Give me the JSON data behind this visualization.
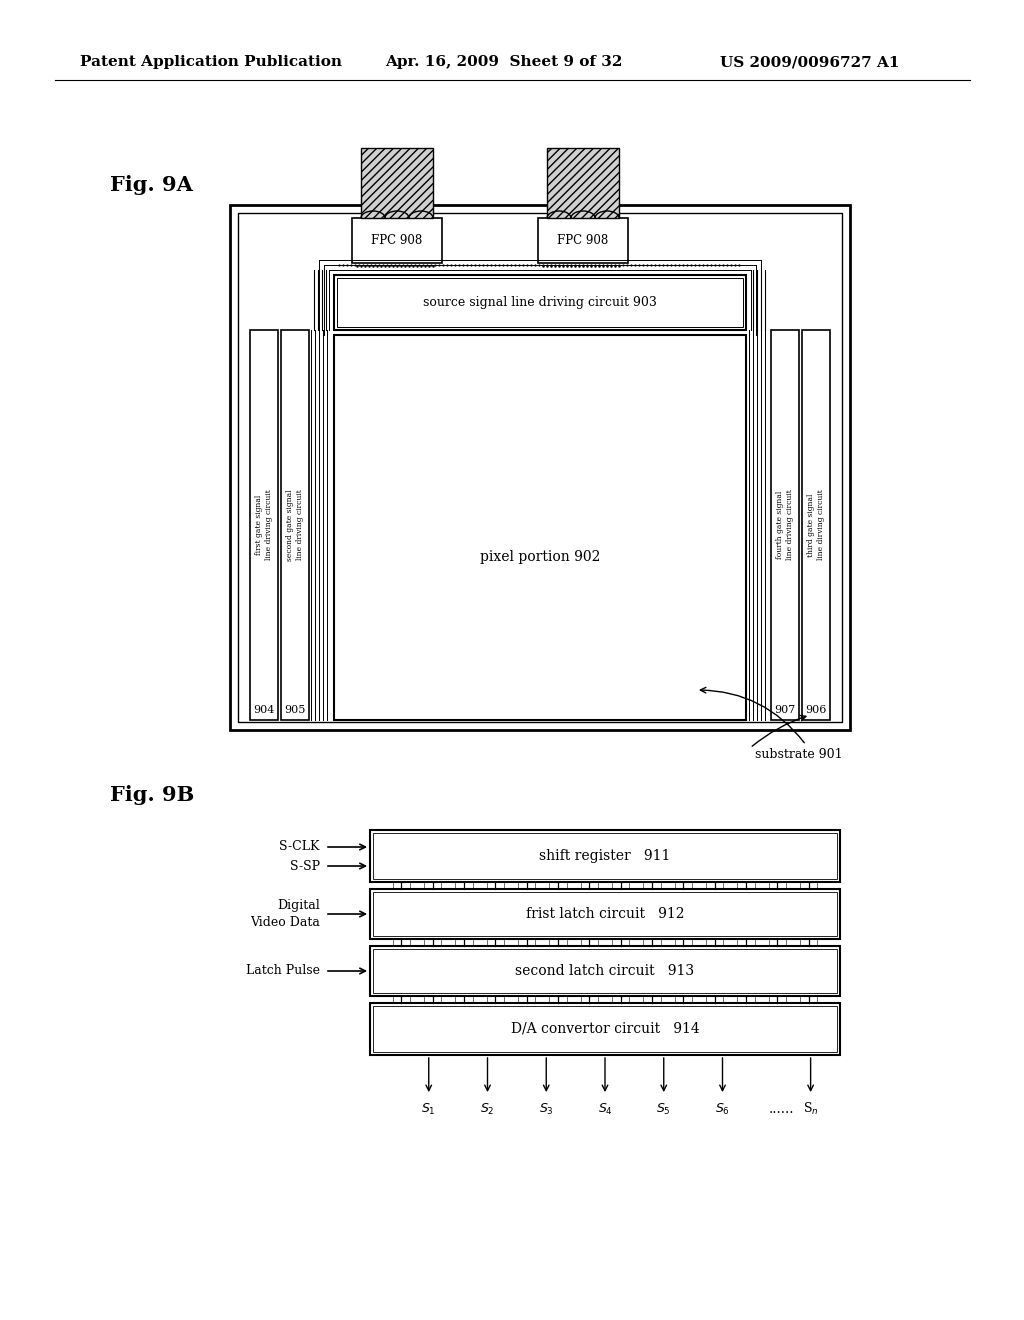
{
  "bg_color": "#ffffff",
  "header_text1": "Patent Application Publication",
  "header_text2": "Apr. 16, 2009  Sheet 9 of 32",
  "header_text3": "US 2009/0096727 A1",
  "fig9A_label": "Fig. 9A",
  "fig9B_label": "Fig. 9B",
  "substrate_label": "substrate 901",
  "pixel_label": "pixel portion 902",
  "source_label": "source signal line driving circuit 903",
  "fpc_label": "FPC 908",
  "label_904": "904",
  "label_905": "905",
  "label_906": "906",
  "label_907": "907",
  "left_col1_text": "first gate signal\nline driving circuit",
  "left_col2_text": "second gate signal\nline driving circuit",
  "right_col1_text": "third gate signal\nline dirving circuit",
  "right_col2_text": "fourth gate signal\nline driving circuit",
  "block_911": "shift register   911",
  "block_912": "frist latch circuit   912",
  "block_913": "second latch circuit   913",
  "block_914": "D/A convertor circuit   914",
  "input_sclk": "S-CLK",
  "input_ssp": "S-SP",
  "input_dvd": "Digital\nVideo Data",
  "input_lp": "Latch Pulse",
  "output_dots": "......",
  "output_sn": "S$_n$"
}
